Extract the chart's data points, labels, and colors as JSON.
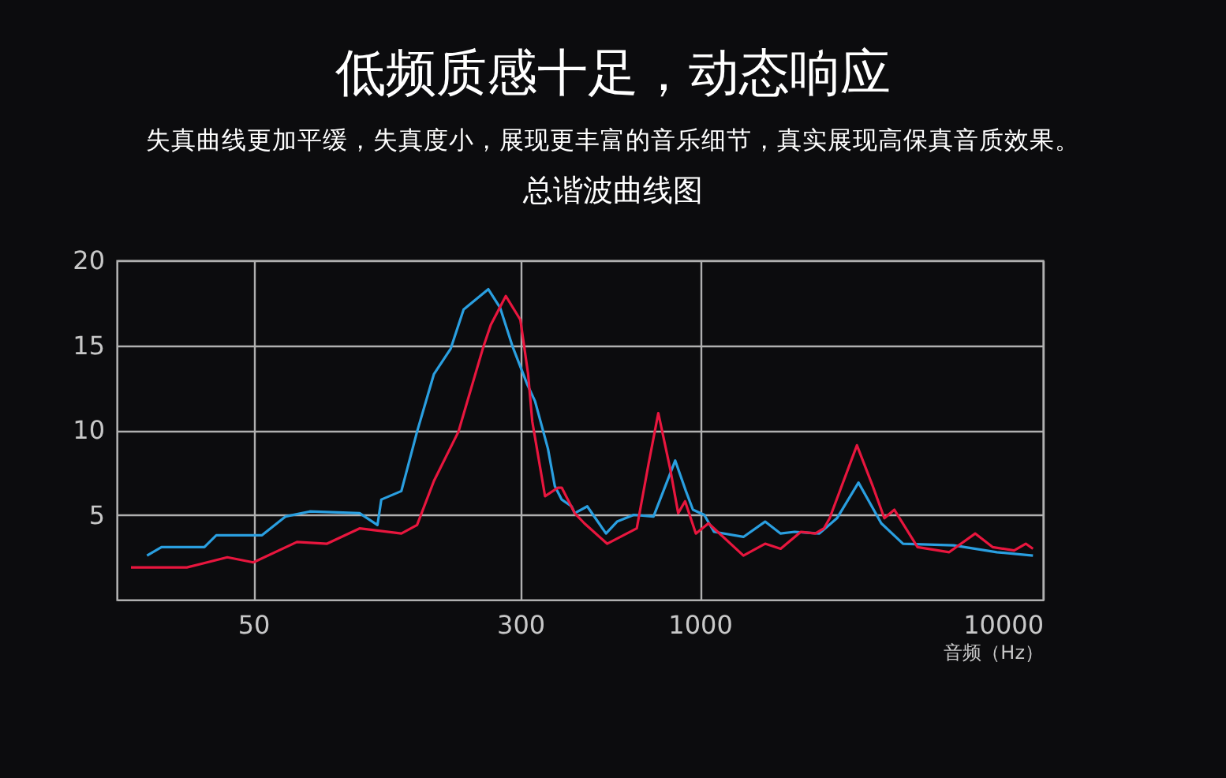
{
  "chart_data": {
    "type": "line",
    "title": "低频质感十足，动态响应",
    "subtitle": "失真曲线更加平缓，失真度小，展现更丰富的音乐细节，真实展现高保真音质效果。",
    "annotations": [
      "总谐波曲线图"
    ],
    "xlabel": "音频（Hz）",
    "log": "x",
    "grid": true,
    "xlim": [
      20,
      10000
    ],
    "xticks": [
      50,
      300,
      1000,
      10000
    ],
    "ylim": [
      0,
      20
    ],
    "yticks": [
      5,
      10,
      15,
      20
    ],
    "series": [
      {
        "color": "#2a9fe0",
        "x": [
          24.5,
          27,
          36,
          39,
          53,
          62,
          73,
          102,
          115,
          118,
          135,
          150,
          168,
          188,
          205,
          242,
          262,
          285,
          314,
          331,
          361,
          378,
          396,
          423,
          432,
          470,
          533,
          574,
          642,
          733,
          848,
          911,
          955,
          1030,
          1100,
          1340,
          1550,
          1720,
          1890,
          2230,
          2510,
          2900,
          3380,
          3910,
          5490,
          7340,
          9350
        ],
        "values": [
          2.6,
          3.1,
          3.1,
          3.8,
          3.8,
          4.9,
          5.2,
          5.1,
          4.4,
          5.9,
          6.4,
          9.9,
          13.3,
          14.8,
          17.1,
          18.3,
          17.2,
          14.9,
          12.7,
          11.7,
          8.9,
          6.7,
          5.9,
          5.5,
          5.1,
          5.5,
          3.9,
          4.6,
          5.0,
          4.9,
          8.2,
          6.4,
          5.3,
          5.0,
          4.0,
          3.7,
          4.6,
          3.9,
          4.0,
          3.9,
          4.8,
          6.9,
          4.5,
          3.3,
          3.2,
          2.8,
          2.6
        ]
      },
      {
        "color": "#e8163e",
        "x": [
          22,
          32,
          42,
          50,
          67,
          82,
          102,
          135,
          150,
          168,
          198,
          234,
          246,
          272,
          300,
          316,
          325,
          354,
          373,
          386,
          396,
          432,
          461,
          537,
          655,
          709,
          757,
          820,
          865,
          906,
          974,
          1060,
          1340,
          1550,
          1720,
          1970,
          2170,
          2300,
          2390,
          2870,
          3190,
          3450,
          3690,
          4310,
          5330,
          6350,
          7130,
          8240,
          8910,
          9350
        ],
        "values": [
          1.9,
          1.9,
          2.5,
          2.2,
          3.4,
          3.3,
          4.2,
          3.9,
          4.4,
          7.0,
          9.9,
          14.9,
          16.2,
          17.9,
          16.5,
          13.3,
          10.5,
          6.1,
          6.4,
          6.6,
          6.6,
          5.1,
          4.5,
          3.3,
          4.2,
          8.0,
          11.0,
          7.7,
          5.1,
          5.8,
          3.9,
          4.5,
          2.6,
          3.3,
          3.0,
          4.0,
          3.9,
          4.2,
          4.8,
          9.1,
          6.7,
          4.8,
          5.3,
          3.1,
          2.8,
          3.9,
          3.1,
          2.9,
          3.3,
          3.0
        ]
      }
    ]
  }
}
